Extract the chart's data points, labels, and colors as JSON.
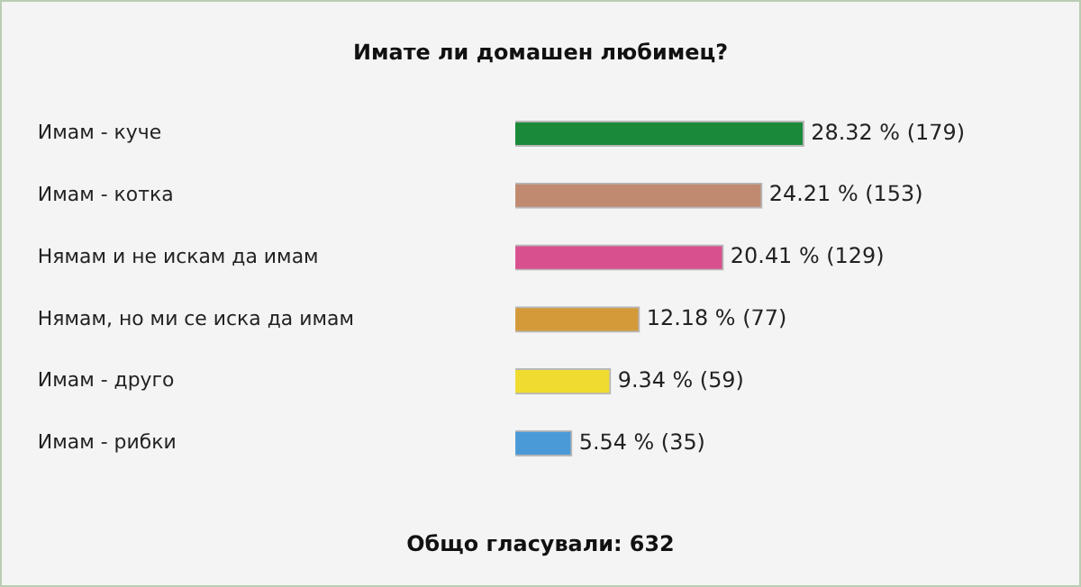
{
  "chart_data": {
    "type": "bar",
    "orientation": "horizontal",
    "title": "Имате ли домашен любимец?",
    "categories": [
      "Имам - куче",
      "Имам - котка",
      "Нямам и не искам да имам",
      "Нямам, но ми се иска да имам",
      "Имам - друго",
      "Имам - рибки"
    ],
    "values": [
      28.32,
      24.21,
      20.41,
      12.18,
      9.34,
      5.54
    ],
    "colors": [
      "#1a8a3a",
      "#c08a70",
      "#d9508f",
      "#d49a3a",
      "#f0dc30",
      "#4a9ad8"
    ],
    "value_labels": [
      "28.32 % (179)",
      "24.21 % (153)",
      "20.41 % (129)",
      "12.18 % (77)",
      "9.34 % (59)",
      "5.54 % (35)"
    ],
    "annotations": [
      "Общо гласували: 632"
    ],
    "legend": false
  }
}
